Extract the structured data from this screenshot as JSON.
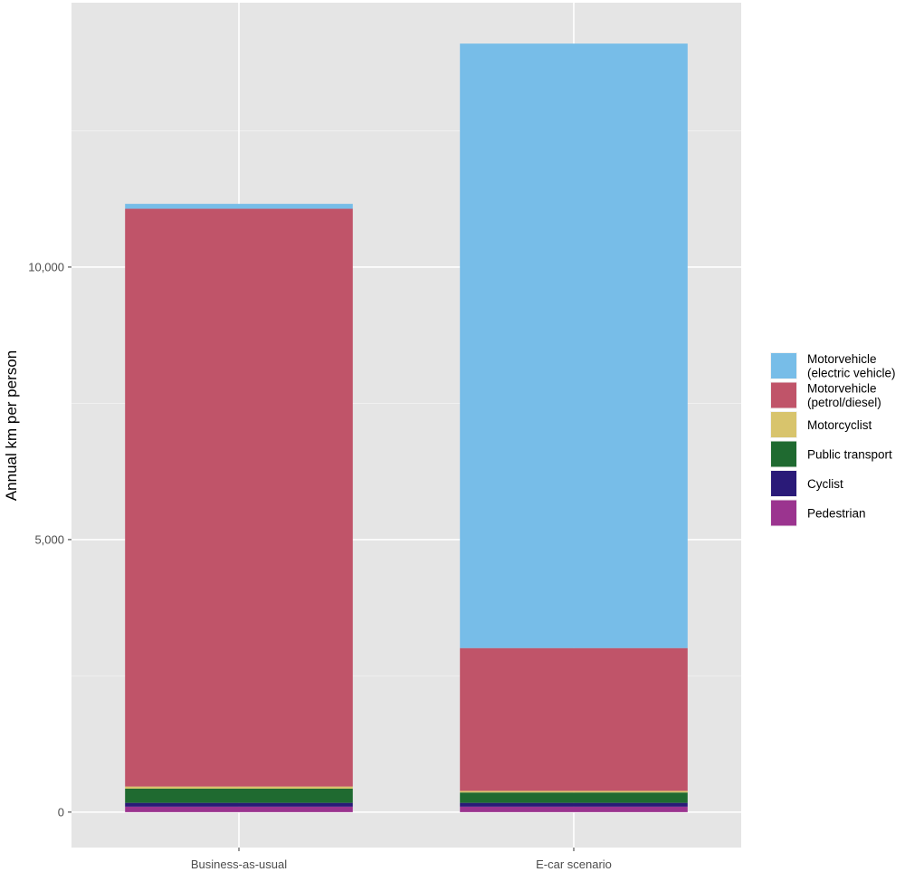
{
  "chart_data": {
    "type": "bar",
    "stacked": true,
    "categories": [
      "Business-as-usual",
      "E-car scenario"
    ],
    "series": [
      {
        "name": "Pedestrian",
        "color": "#9b348f",
        "values": [
          100,
          100
        ]
      },
      {
        "name": "Cyclist",
        "color": "#2a1a78",
        "values": [
          70,
          70
        ]
      },
      {
        "name": "Public transport",
        "color": "#1f6a30",
        "values": [
          260,
          190
        ]
      },
      {
        "name": "Motorcyclist",
        "color": "#d8c46c",
        "values": [
          40,
          30
        ]
      },
      {
        "name": "Motorvehicle\n(petrol/diesel)",
        "color": "#c05469",
        "values": [
          10600,
          2620
        ]
      },
      {
        "name": "Motorvehicle\n(electric vehicle)",
        "color": "#77bde8",
        "values": [
          90,
          11090
        ]
      }
    ],
    "xlabel": "",
    "ylabel": "Annual km per person",
    "y_ticks": [
      0,
      5000,
      10000
    ],
    "y_tick_labels": [
      "0",
      "5,000",
      "10,000"
    ],
    "ylim": [
      -650,
      14850
    ],
    "grid": true,
    "panel_background": "#e5e5e5",
    "legend_position": "right",
    "legend_order": [
      "Motorvehicle\n(electric vehicle)",
      "Motorvehicle\n(petrol/diesel)",
      "Motorcyclist",
      "Public transport",
      "Cyclist",
      "Pedestrian"
    ]
  }
}
